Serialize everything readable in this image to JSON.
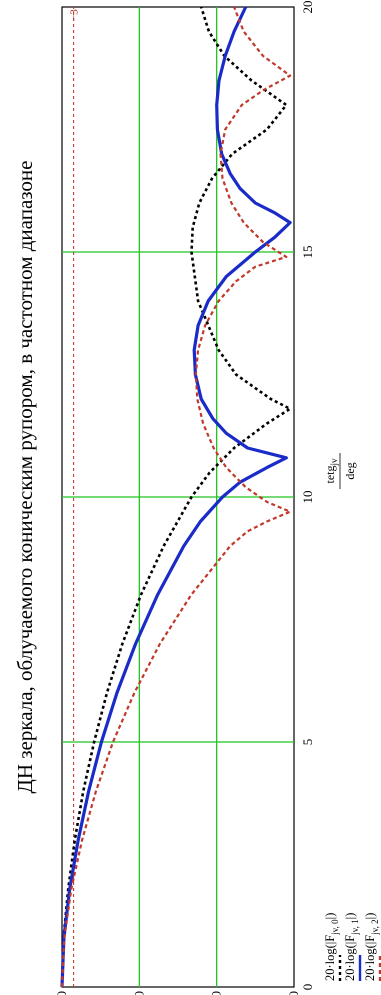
{
  "chart_data": {
    "type": "line",
    "title": "ДН зеркала, облучаемого коническим рупором, в частотном диапазоне",
    "xlabel": "tetg_jv / deg",
    "xlabel_main": "tetg",
    "xlabel_sub": "jv",
    "xlabel_den": "deg",
    "ylabel": "",
    "xlim": [
      0,
      20
    ],
    "ylim": [
      -60,
      0
    ],
    "xticks": [
      0,
      5,
      10,
      15,
      20
    ],
    "yticks": [
      0,
      -20,
      -40,
      -60
    ],
    "xtick_labels": [
      "0",
      "5",
      "10",
      "15",
      "20"
    ],
    "ytick_labels": [
      "0",
      "−20",
      "−40",
      "−60"
    ],
    "grid": true,
    "legend_position": "left",
    "annotation": "−3",
    "series": [
      {
        "name": "20·log(|F_jv,0|)",
        "legend_main": "20·log(|F",
        "legend_sub": "jv, 0",
        "legend_tail": "|)",
        "color": "#000000",
        "style": "dotted",
        "x": [
          0,
          1,
          2,
          3,
          4,
          5,
          6,
          7,
          8,
          9,
          10,
          10.5,
          11,
          11.5,
          11.8,
          12,
          12.5,
          13,
          14,
          15,
          15.5,
          16,
          16.5,
          17,
          17.5,
          18,
          18.5,
          19,
          19.5,
          20
        ],
        "y": [
          0,
          -0.4,
          -1.6,
          -3.3,
          -5.5,
          -8.3,
          -11.6,
          -15.6,
          -20.4,
          -26.3,
          -33.5,
          -38.2,
          -44.5,
          -53,
          -59,
          -54,
          -45,
          -40.5,
          -35.2,
          -33.5,
          -33.8,
          -35.5,
          -38.8,
          -44,
          -53,
          -58,
          -49,
          -42,
          -38,
          -36
        ]
      },
      {
        "name": "20·log(|F_jv,1|)",
        "legend_main": "20·log(|F",
        "legend_sub": "jv, 1",
        "legend_tail": "|)",
        "color": "#1a2bc8",
        "style": "solid",
        "x": [
          0,
          1,
          2,
          3,
          4,
          5,
          6,
          7,
          8,
          9,
          9.5,
          10,
          10.3,
          10.6,
          10.8,
          11,
          11.3,
          11.6,
          12,
          12.5,
          13,
          13.5,
          14,
          14.5,
          15,
          15.3,
          15.6,
          15.8,
          16,
          16.3,
          16.6,
          17,
          17.5,
          18,
          18.5,
          19,
          19.5,
          20
        ],
        "y": [
          0,
          -0.5,
          -2,
          -4.2,
          -6.9,
          -10.2,
          -14.2,
          -19,
          -24.7,
          -31.5,
          -35.8,
          -41.5,
          -46,
          -53,
          -58,
          -48,
          -42.5,
          -39,
          -36,
          -34.5,
          -34.2,
          -35.2,
          -37.8,
          -42.5,
          -50,
          -55,
          -59,
          -55,
          -50,
          -46,
          -43.5,
          -41.3,
          -40.2,
          -40,
          -40.6,
          -42.2,
          -44.5,
          -47.5
        ]
      },
      {
        "name": "20·log(|F_jv,2|)",
        "legend_main": "20·log(|F",
        "legend_sub": "jv, 2",
        "legend_tail": "|)",
        "color": "#c0392b",
        "style": "dashed",
        "x": [
          0,
          1,
          2,
          3,
          4,
          5,
          6,
          7,
          8,
          9,
          9.3,
          9.5,
          9.7,
          9.9,
          10.2,
          10.6,
          11,
          11.5,
          12,
          12.5,
          13,
          13.5,
          14,
          14.4,
          14.7,
          14.9,
          15.2,
          15.6,
          16,
          16.5,
          17,
          17.5,
          18,
          18.3,
          18.6,
          19,
          19.5,
          20
        ],
        "y": [
          0,
          -0.6,
          -2.4,
          -5.2,
          -8.8,
          -13.2,
          -18.7,
          -25.3,
          -33.4,
          -43.5,
          -48,
          -53,
          -59,
          -53,
          -47.5,
          -42.5,
          -39.2,
          -36.5,
          -35,
          -34.6,
          -35.2,
          -37,
          -40.5,
          -45,
          -50,
          -58,
          -52,
          -47,
          -43.8,
          -41.5,
          -41,
          -42.2,
          -46.5,
          -52,
          -59,
          -52,
          -47,
          -44.5
        ]
      }
    ],
    "reference_line": {
      "y": -3,
      "color": "#c0392b",
      "style": "dashed"
    }
  }
}
